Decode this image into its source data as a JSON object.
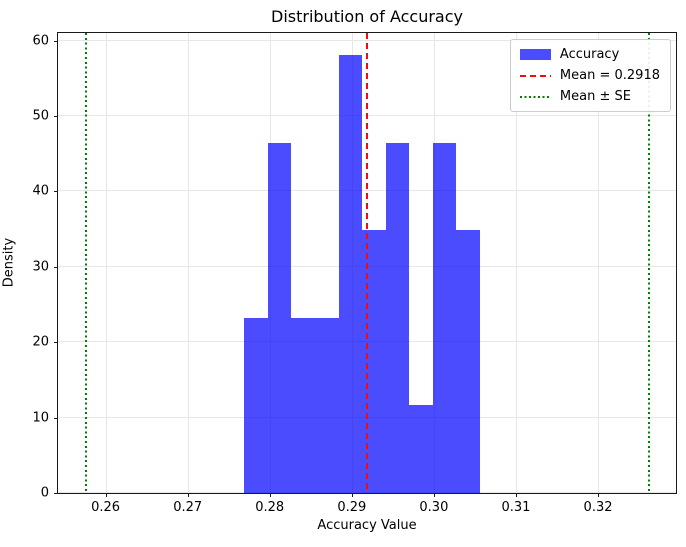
{
  "chart_data": {
    "type": "bar",
    "subtype": "histogram",
    "title": "Distribution of Accuracy",
    "xlabel": "Accuracy Value",
    "ylabel": "Density",
    "xlim": [
      0.2542,
      0.3295
    ],
    "ylim": [
      0,
      61
    ],
    "grid": true,
    "bar_color": "#0000ff",
    "bar_alpha": 0.7,
    "bin_start": 0.2769,
    "bin_width": 0.00287,
    "densities": [
      23.23,
      46.46,
      23.23,
      23.23,
      58.07,
      34.84,
      46.46,
      11.61,
      46.46,
      34.84
    ],
    "counts": [
      2,
      4,
      2,
      2,
      5,
      3,
      4,
      1,
      4,
      3
    ],
    "x_ticks": [
      {
        "value": 0.26,
        "label": "0.26"
      },
      {
        "value": 0.27,
        "label": "0.27"
      },
      {
        "value": 0.28,
        "label": "0.28"
      },
      {
        "value": 0.29,
        "label": "0.29"
      },
      {
        "value": 0.3,
        "label": "0.30"
      },
      {
        "value": 0.31,
        "label": "0.31"
      },
      {
        "value": 0.32,
        "label": "0.32"
      }
    ],
    "y_ticks": [
      {
        "value": 0,
        "label": "0"
      },
      {
        "value": 10,
        "label": "10"
      },
      {
        "value": 20,
        "label": "20"
      },
      {
        "value": 30,
        "label": "30"
      },
      {
        "value": 40,
        "label": "40"
      },
      {
        "value": 50,
        "label": "50"
      },
      {
        "value": 60,
        "label": "60"
      }
    ],
    "mean_line": {
      "value": 0.2918,
      "color": "#f10c0c",
      "style": "dashed"
    },
    "se_lines": {
      "values": [
        0.2575,
        0.3261
      ],
      "color": "#008000",
      "style": "dotted"
    },
    "legend": {
      "position": "upper right",
      "entries": [
        {
          "swatch": "patch",
          "color": "#0000ff",
          "label": "Accuracy"
        },
        {
          "swatch": "dashed",
          "color": "#f10c0c",
          "label": "Mean = 0.2918"
        },
        {
          "swatch": "dotted",
          "color": "#008000",
          "label": "Mean ± SE"
        }
      ]
    }
  }
}
